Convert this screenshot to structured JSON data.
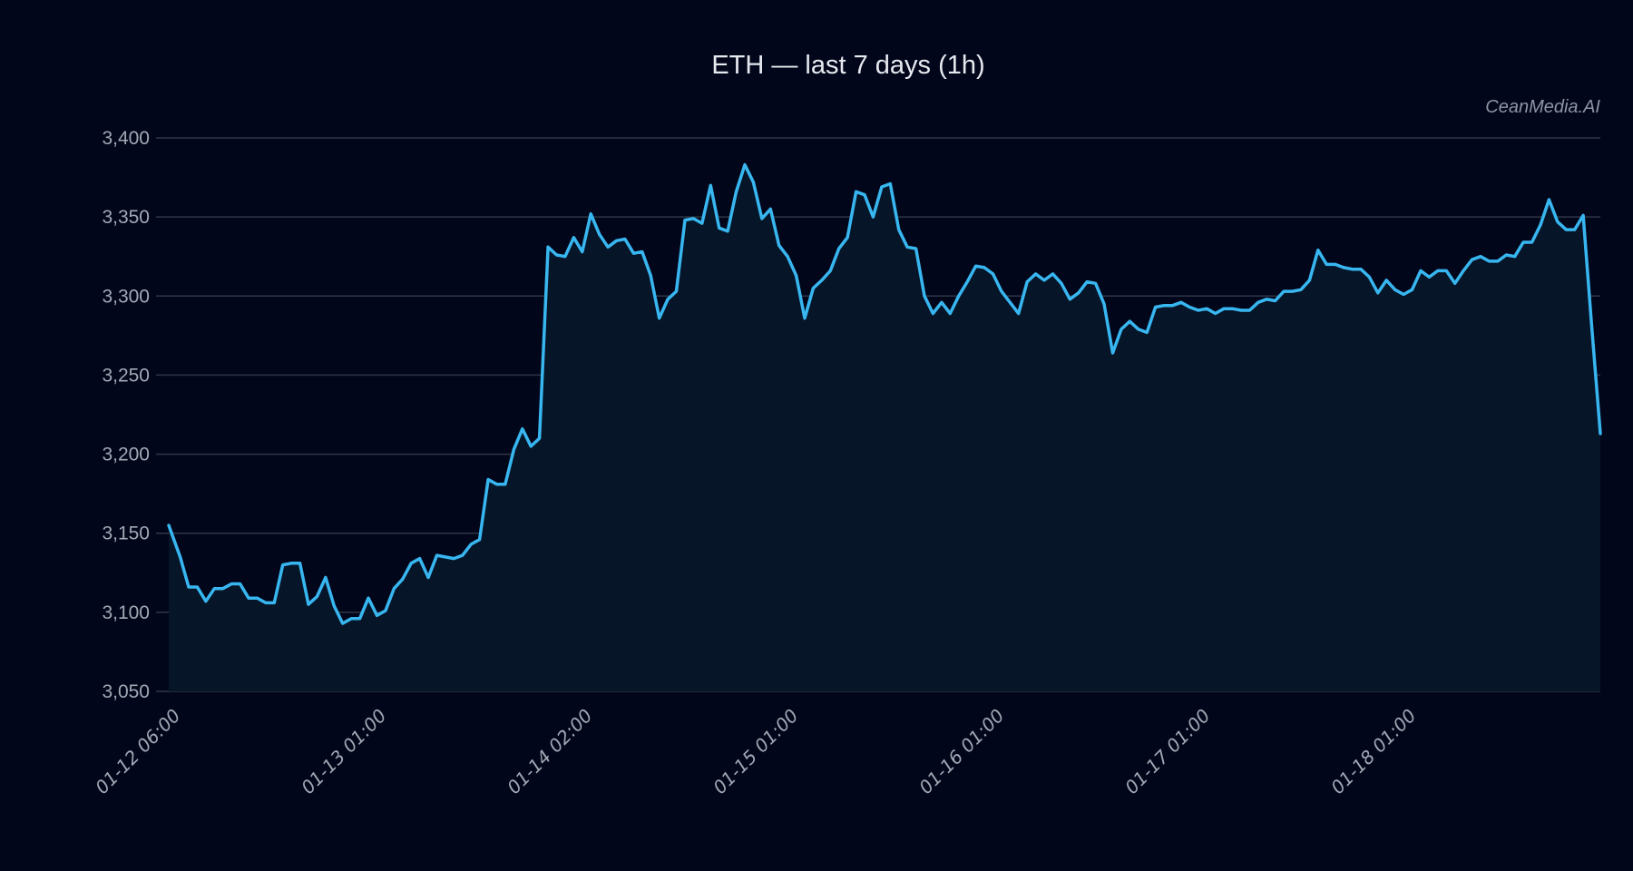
{
  "title": "ETH — last 7 days (1h)",
  "watermark": "CeanMedia.AI",
  "colors": {
    "background": "#02061a",
    "line": "#38b6f0",
    "fill": "#061528",
    "grid": "#2e3646",
    "text": "#a3a8b5"
  },
  "chart_data": {
    "type": "area",
    "title": "ETH — last 7 days (1h)",
    "xlabel": "",
    "ylabel": "",
    "ylim": [
      3050,
      3400
    ],
    "grid": true,
    "legend": null,
    "y_ticks": [
      "3,050",
      "3,100",
      "3,150",
      "3,200",
      "3,250",
      "3,300",
      "3,350",
      "3,400"
    ],
    "x_ticks": [
      "01-12 06:00",
      "01-13 01:00",
      "01-14 02:00",
      "01-15 01:00",
      "01-16 01:00",
      "01-17 01:00",
      "01-18 01:00"
    ],
    "annotations": [
      "CeanMedia.AI"
    ],
    "series": [
      {
        "name": "ETH",
        "points": [
          {
            "x": 0,
            "y": 3155
          },
          {
            "x": 4,
            "y": 3135
          },
          {
            "x": 7,
            "y": 3116
          },
          {
            "x": 10,
            "y": 3116
          },
          {
            "x": 13,
            "y": 3107
          },
          {
            "x": 16,
            "y": 3115
          },
          {
            "x": 19,
            "y": 3115
          },
          {
            "x": 22,
            "y": 3118
          },
          {
            "x": 25,
            "y": 3118
          },
          {
            "x": 28,
            "y": 3109
          },
          {
            "x": 31,
            "y": 3109
          },
          {
            "x": 34,
            "y": 3106
          },
          {
            "x": 37,
            "y": 3106
          },
          {
            "x": 40,
            "y": 3130
          },
          {
            "x": 43,
            "y": 3131
          },
          {
            "x": 46,
            "y": 3131
          },
          {
            "x": 49,
            "y": 3105
          },
          {
            "x": 52,
            "y": 3110
          },
          {
            "x": 55,
            "y": 3122
          },
          {
            "x": 58,
            "y": 3104
          },
          {
            "x": 61,
            "y": 3093
          },
          {
            "x": 64,
            "y": 3096
          },
          {
            "x": 67,
            "y": 3096
          },
          {
            "x": 70,
            "y": 3109
          },
          {
            "x": 73,
            "y": 3098
          },
          {
            "x": 76,
            "y": 3101
          },
          {
            "x": 79,
            "y": 3115
          },
          {
            "x": 82,
            "y": 3121
          },
          {
            "x": 85,
            "y": 3131
          },
          {
            "x": 88,
            "y": 3134
          },
          {
            "x": 91,
            "y": 3122
          },
          {
            "x": 94,
            "y": 3136
          },
          {
            "x": 97,
            "y": 3135
          },
          {
            "x": 100,
            "y": 3134
          },
          {
            "x": 103,
            "y": 3136
          },
          {
            "x": 106,
            "y": 3143
          },
          {
            "x": 109,
            "y": 3146
          },
          {
            "x": 112,
            "y": 3184
          },
          {
            "x": 115,
            "y": 3181
          },
          {
            "x": 118,
            "y": 3181
          },
          {
            "x": 121,
            "y": 3203
          },
          {
            "x": 124,
            "y": 3216
          },
          {
            "x": 127,
            "y": 3205
          },
          {
            "x": 130,
            "y": 3210
          },
          {
            "x": 133,
            "y": 3331
          },
          {
            "x": 136,
            "y": 3326
          },
          {
            "x": 139,
            "y": 3325
          },
          {
            "x": 142,
            "y": 3337
          },
          {
            "x": 145,
            "y": 3328
          },
          {
            "x": 148,
            "y": 3352
          },
          {
            "x": 151,
            "y": 3339
          },
          {
            "x": 154,
            "y": 3331
          },
          {
            "x": 157,
            "y": 3335
          },
          {
            "x": 160,
            "y": 3336
          },
          {
            "x": 163,
            "y": 3327
          },
          {
            "x": 166,
            "y": 3328
          },
          {
            "x": 169,
            "y": 3313
          },
          {
            "x": 172,
            "y": 3286
          },
          {
            "x": 175,
            "y": 3298
          },
          {
            "x": 178,
            "y": 3303
          },
          {
            "x": 181,
            "y": 3348
          },
          {
            "x": 184,
            "y": 3349
          },
          {
            "x": 187,
            "y": 3346
          },
          {
            "x": 190,
            "y": 3370
          },
          {
            "x": 193,
            "y": 3343
          },
          {
            "x": 196,
            "y": 3341
          },
          {
            "x": 199,
            "y": 3366
          },
          {
            "x": 202,
            "y": 3383
          },
          {
            "x": 205,
            "y": 3372
          },
          {
            "x": 208,
            "y": 3349
          },
          {
            "x": 211,
            "y": 3355
          },
          {
            "x": 214,
            "y": 3332
          },
          {
            "x": 217,
            "y": 3325
          },
          {
            "x": 220,
            "y": 3313
          },
          {
            "x": 223,
            "y": 3286
          },
          {
            "x": 226,
            "y": 3305
          },
          {
            "x": 229,
            "y": 3310
          },
          {
            "x": 232,
            "y": 3316
          },
          {
            "x": 235,
            "y": 3330
          },
          {
            "x": 238,
            "y": 3337
          },
          {
            "x": 241,
            "y": 3366
          },
          {
            "x": 244,
            "y": 3364
          },
          {
            "x": 247,
            "y": 3350
          },
          {
            "x": 250,
            "y": 3369
          },
          {
            "x": 253,
            "y": 3371
          },
          {
            "x": 256,
            "y": 3342
          },
          {
            "x": 259,
            "y": 3331
          },
          {
            "x": 262,
            "y": 3330
          },
          {
            "x": 265,
            "y": 3300
          },
          {
            "x": 268,
            "y": 3289
          },
          {
            "x": 271,
            "y": 3296
          },
          {
            "x": 274,
            "y": 3289
          },
          {
            "x": 277,
            "y": 3300
          },
          {
            "x": 280,
            "y": 3309
          },
          {
            "x": 283,
            "y": 3319
          },
          {
            "x": 286,
            "y": 3318
          },
          {
            "x": 289,
            "y": 3314
          },
          {
            "x": 292,
            "y": 3303
          },
          {
            "x": 295,
            "y": 3296
          },
          {
            "x": 298,
            "y": 3289
          },
          {
            "x": 301,
            "y": 3309
          },
          {
            "x": 304,
            "y": 3314
          },
          {
            "x": 307,
            "y": 3310
          },
          {
            "x": 310,
            "y": 3314
          },
          {
            "x": 313,
            "y": 3308
          },
          {
            "x": 316,
            "y": 3298
          },
          {
            "x": 319,
            "y": 3302
          },
          {
            "x": 322,
            "y": 3309
          },
          {
            "x": 325,
            "y": 3308
          },
          {
            "x": 328,
            "y": 3295
          },
          {
            "x": 331,
            "y": 3264
          },
          {
            "x": 334,
            "y": 3279
          },
          {
            "x": 337,
            "y": 3284
          },
          {
            "x": 340,
            "y": 3279
          },
          {
            "x": 343,
            "y": 3277
          },
          {
            "x": 346,
            "y": 3293
          },
          {
            "x": 349,
            "y": 3294
          },
          {
            "x": 352,
            "y": 3294
          },
          {
            "x": 355,
            "y": 3296
          },
          {
            "x": 358,
            "y": 3293
          },
          {
            "x": 361,
            "y": 3291
          },
          {
            "x": 364,
            "y": 3292
          },
          {
            "x": 367,
            "y": 3289
          },
          {
            "x": 370,
            "y": 3292
          },
          {
            "x": 373,
            "y": 3292
          },
          {
            "x": 376,
            "y": 3291
          },
          {
            "x": 379,
            "y": 3291
          },
          {
            "x": 382,
            "y": 3296
          },
          {
            "x": 385,
            "y": 3298
          },
          {
            "x": 388,
            "y": 3297
          },
          {
            "x": 391,
            "y": 3303
          },
          {
            "x": 394,
            "y": 3303
          },
          {
            "x": 397,
            "y": 3304
          },
          {
            "x": 400,
            "y": 3310
          },
          {
            "x": 403,
            "y": 3329
          },
          {
            "x": 406,
            "y": 3320
          },
          {
            "x": 409,
            "y": 3320
          },
          {
            "x": 412,
            "y": 3318
          },
          {
            "x": 415,
            "y": 3317
          },
          {
            "x": 418,
            "y": 3317
          },
          {
            "x": 421,
            "y": 3312
          },
          {
            "x": 424,
            "y": 3302
          },
          {
            "x": 427,
            "y": 3310
          },
          {
            "x": 430,
            "y": 3304
          },
          {
            "x": 433,
            "y": 3301
          },
          {
            "x": 436,
            "y": 3304
          },
          {
            "x": 439,
            "y": 3316
          },
          {
            "x": 442,
            "y": 3312
          },
          {
            "x": 445,
            "y": 3316
          },
          {
            "x": 448,
            "y": 3316
          },
          {
            "x": 451,
            "y": 3308
          },
          {
            "x": 454,
            "y": 3316
          },
          {
            "x": 457,
            "y": 3323
          },
          {
            "x": 460,
            "y": 3325
          },
          {
            "x": 463,
            "y": 3322
          },
          {
            "x": 466,
            "y": 3322
          },
          {
            "x": 469,
            "y": 3326
          },
          {
            "x": 472,
            "y": 3325
          },
          {
            "x": 475,
            "y": 3334
          },
          {
            "x": 478,
            "y": 3334
          },
          {
            "x": 481,
            "y": 3345
          },
          {
            "x": 484,
            "y": 3361
          },
          {
            "x": 487,
            "y": 3347
          },
          {
            "x": 490,
            "y": 3342
          },
          {
            "x": 493,
            "y": 3342
          },
          {
            "x": 496,
            "y": 3351
          },
          {
            "x": 499,
            "y": 3280
          },
          {
            "x": 502,
            "y": 3213
          }
        ]
      }
    ]
  }
}
